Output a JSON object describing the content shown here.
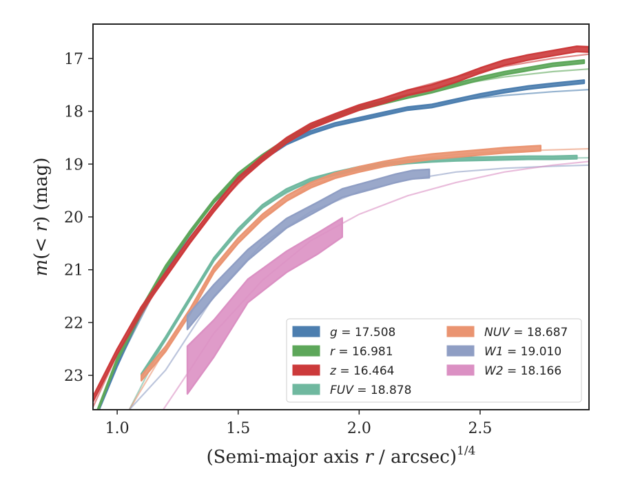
{
  "chart_data": {
    "type": "line",
    "title": "",
    "xlabel": "(Semi-major axis r / arcsec)^1/4",
    "xlabel_main": "(Semi-major axis ",
    "xlabel_var": "r",
    "xlabel_rest": " / arcsec)",
    "xlabel_exp": "1/4",
    "ylabel": "m(< r) (mag)",
    "ylabel_m": "m",
    "ylabel_lt": "(< ",
    "ylabel_r": "r",
    "ylabel_close": ")",
    "ylabel_unit": " (mag)",
    "xlim": [
      0.9,
      2.95
    ],
    "ylim": [
      23.65,
      16.35
    ],
    "y_inverted": true,
    "xticks": [
      1.0,
      1.5,
      2.0,
      2.5
    ],
    "xtick_labels": [
      "1.0",
      "1.5",
      "2.0",
      "2.5"
    ],
    "yticks": [
      17,
      18,
      19,
      20,
      21,
      22,
      23
    ],
    "ytick_labels": [
      "17",
      "18",
      "19",
      "20",
      "21",
      "22",
      "23"
    ],
    "grid": false,
    "legend_position": "lower-right",
    "legend_columns": 2,
    "series": [
      {
        "name": "g = 17.508",
        "band": "g",
        "value": "17.508",
        "color": "#4c7eaf",
        "x": [
          0.9,
          1.0,
          1.1,
          1.2,
          1.3,
          1.4,
          1.5,
          1.6,
          1.7,
          1.8,
          1.9,
          2.0,
          2.1,
          2.2,
          2.3,
          2.4,
          2.5,
          2.6,
          2.7,
          2.8,
          2.93
        ],
        "y": [
          23.9,
          22.8,
          21.8,
          21.0,
          20.3,
          19.7,
          19.25,
          18.9,
          18.6,
          18.4,
          18.25,
          18.15,
          18.05,
          17.95,
          17.9,
          17.8,
          17.7,
          17.62,
          17.55,
          17.5,
          17.44
        ],
        "error": [
          0.03,
          0.03,
          0.03,
          0.03,
          0.03,
          0.03,
          0.03,
          0.03,
          0.03,
          0.03,
          0.03,
          0.03,
          0.03,
          0.03,
          0.03,
          0.03,
          0.03,
          0.03,
          0.03,
          0.03,
          0.03
        ],
        "model_x": [
          0.9,
          1.0,
          1.2,
          1.4,
          1.6,
          1.8,
          2.0,
          2.2,
          2.4,
          2.6,
          2.8,
          2.95
        ],
        "model_y": [
          23.9,
          22.8,
          21.0,
          19.7,
          18.85,
          18.4,
          18.15,
          17.95,
          17.8,
          17.7,
          17.63,
          17.59
        ]
      },
      {
        "name": "r = 16.981",
        "band": "r",
        "value": "16.981",
        "color": "#5da75a",
        "x": [
          0.9,
          1.0,
          1.1,
          1.2,
          1.3,
          1.4,
          1.5,
          1.6,
          1.7,
          1.8,
          1.9,
          2.0,
          2.1,
          2.2,
          2.3,
          2.4,
          2.5,
          2.6,
          2.7,
          2.8,
          2.93
        ],
        "y": [
          23.9,
          22.7,
          21.75,
          20.95,
          20.3,
          19.7,
          19.2,
          18.85,
          18.55,
          18.3,
          18.1,
          17.95,
          17.83,
          17.72,
          17.62,
          17.5,
          17.38,
          17.28,
          17.2,
          17.12,
          17.06
        ],
        "error": [
          0.03,
          0.03,
          0.03,
          0.03,
          0.03,
          0.03,
          0.03,
          0.03,
          0.03,
          0.03,
          0.03,
          0.03,
          0.03,
          0.03,
          0.03,
          0.03,
          0.03,
          0.03,
          0.03,
          0.03,
          0.03
        ],
        "model_x": [
          0.9,
          1.0,
          1.2,
          1.4,
          1.6,
          1.8,
          2.0,
          2.2,
          2.4,
          2.6,
          2.8,
          2.95
        ],
        "model_y": [
          23.9,
          22.75,
          20.95,
          19.7,
          18.85,
          18.3,
          17.95,
          17.7,
          17.5,
          17.35,
          17.25,
          17.2
        ]
      },
      {
        "name": "z = 16.464",
        "band": "z",
        "value": "16.464",
        "color": "#cc3a3b",
        "x": [
          0.9,
          1.0,
          1.1,
          1.2,
          1.3,
          1.4,
          1.5,
          1.6,
          1.7,
          1.8,
          1.9,
          2.0,
          2.1,
          2.2,
          2.3,
          2.4,
          2.5,
          2.6,
          2.7,
          2.8,
          2.9,
          2.95
        ],
        "y": [
          23.45,
          22.55,
          21.75,
          21.1,
          20.45,
          19.85,
          19.3,
          18.9,
          18.55,
          18.28,
          18.1,
          17.93,
          17.8,
          17.65,
          17.55,
          17.4,
          17.23,
          17.08,
          16.98,
          16.9,
          16.82,
          16.83
        ],
        "error": [
          0.05,
          0.05,
          0.05,
          0.05,
          0.05,
          0.05,
          0.05,
          0.05,
          0.05,
          0.05,
          0.05,
          0.05,
          0.05,
          0.05,
          0.05,
          0.05,
          0.05,
          0.05,
          0.05,
          0.05,
          0.05,
          0.05
        ],
        "model_x": [
          0.9,
          1.0,
          1.2,
          1.4,
          1.6,
          1.8,
          2.0,
          2.2,
          2.4,
          2.6,
          2.8,
          2.95
        ],
        "model_y": [
          23.6,
          22.6,
          21.1,
          19.85,
          18.9,
          18.3,
          17.9,
          17.6,
          17.35,
          17.15,
          17.0,
          16.92
        ]
      },
      {
        "name": "FUV = 18.878",
        "band": "FUV",
        "value": "18.878",
        "color": "#6fb89f",
        "x": [
          1.1,
          1.2,
          1.3,
          1.4,
          1.5,
          1.6,
          1.7,
          1.8,
          1.9,
          2.0,
          2.1,
          2.2,
          2.3,
          2.4,
          2.5,
          2.6,
          2.7,
          2.8,
          2.9
        ],
        "y": [
          23.0,
          22.3,
          21.55,
          20.8,
          20.25,
          19.8,
          19.5,
          19.3,
          19.18,
          19.08,
          19.01,
          18.96,
          18.93,
          18.91,
          18.9,
          18.89,
          18.88,
          18.88,
          18.87
        ],
        "error": [
          0.03,
          0.03,
          0.03,
          0.03,
          0.03,
          0.03,
          0.03,
          0.03,
          0.03,
          0.03,
          0.03,
          0.03,
          0.03,
          0.03,
          0.03,
          0.03,
          0.03,
          0.03,
          0.03
        ],
        "model_x": [
          1.05,
          1.2,
          1.4,
          1.6,
          1.8,
          2.0,
          2.2,
          2.4,
          2.6,
          2.8,
          2.95
        ],
        "model_y": [
          23.65,
          22.3,
          20.8,
          19.8,
          19.3,
          19.08,
          18.97,
          18.92,
          18.9,
          18.89,
          18.88
        ]
      },
      {
        "name": "NUV = 18.687",
        "band": "NUV",
        "value": "18.687",
        "color": "#ea9471",
        "x": [
          1.1,
          1.2,
          1.3,
          1.4,
          1.5,
          1.6,
          1.7,
          1.8,
          1.9,
          2.0,
          2.1,
          2.2,
          2.3,
          2.4,
          2.5,
          2.6,
          2.75
        ],
        "y": [
          23.05,
          22.5,
          21.8,
          21.0,
          20.45,
          20.0,
          19.65,
          19.4,
          19.22,
          19.1,
          19.0,
          18.92,
          18.86,
          18.82,
          18.78,
          18.74,
          18.7
        ],
        "error": [
          0.05,
          0.05,
          0.05,
          0.05,
          0.05,
          0.05,
          0.05,
          0.05,
          0.05,
          0.05,
          0.05,
          0.05,
          0.05,
          0.05,
          0.05,
          0.05,
          0.05
        ],
        "model_x": [
          1.05,
          1.2,
          1.4,
          1.6,
          1.8,
          2.0,
          2.2,
          2.4,
          2.6,
          2.8,
          2.95
        ],
        "model_y": [
          23.65,
          22.5,
          21.0,
          20.0,
          19.4,
          19.1,
          18.92,
          18.82,
          18.76,
          18.73,
          18.71
        ]
      },
      {
        "name": "W1 = 19.010",
        "band": "W1",
        "value": "19.010",
        "color": "#8f9ec4",
        "x": [
          1.29,
          1.4,
          1.54,
          1.7,
          1.83,
          1.93,
          2.05,
          2.15,
          2.22,
          2.29
        ],
        "y": [
          22.0,
          21.4,
          20.72,
          20.12,
          19.8,
          19.55,
          19.4,
          19.27,
          19.2,
          19.18
        ],
        "error": [
          0.13,
          0.12,
          0.1,
          0.09,
          0.08,
          0.08,
          0.08,
          0.08,
          0.08,
          0.08
        ],
        "model_x": [
          1.05,
          1.2,
          1.4,
          1.6,
          1.8,
          2.0,
          2.2,
          2.4,
          2.6,
          2.8,
          2.95
        ],
        "model_y": [
          23.65,
          22.9,
          21.5,
          20.5,
          19.9,
          19.52,
          19.3,
          19.15,
          19.08,
          19.04,
          19.02
        ]
      },
      {
        "name": "W2 = 18.166",
        "band": "W2",
        "value": "18.166",
        "color": "#db90c3",
        "x": [
          1.29,
          1.4,
          1.54,
          1.7,
          1.83,
          1.93
        ],
        "y": [
          22.9,
          22.3,
          21.4,
          20.85,
          20.5,
          20.2
        ],
        "error": [
          0.45,
          0.35,
          0.22,
          0.2,
          0.2,
          0.18
        ],
        "model_x": [
          1.19,
          1.3,
          1.4,
          1.6,
          1.8,
          2.0,
          2.2,
          2.4,
          2.6,
          2.8,
          2.95
        ],
        "model_y": [
          23.65,
          22.9,
          22.2,
          21.2,
          20.45,
          19.95,
          19.6,
          19.35,
          19.15,
          19.02,
          18.95
        ]
      }
    ]
  }
}
